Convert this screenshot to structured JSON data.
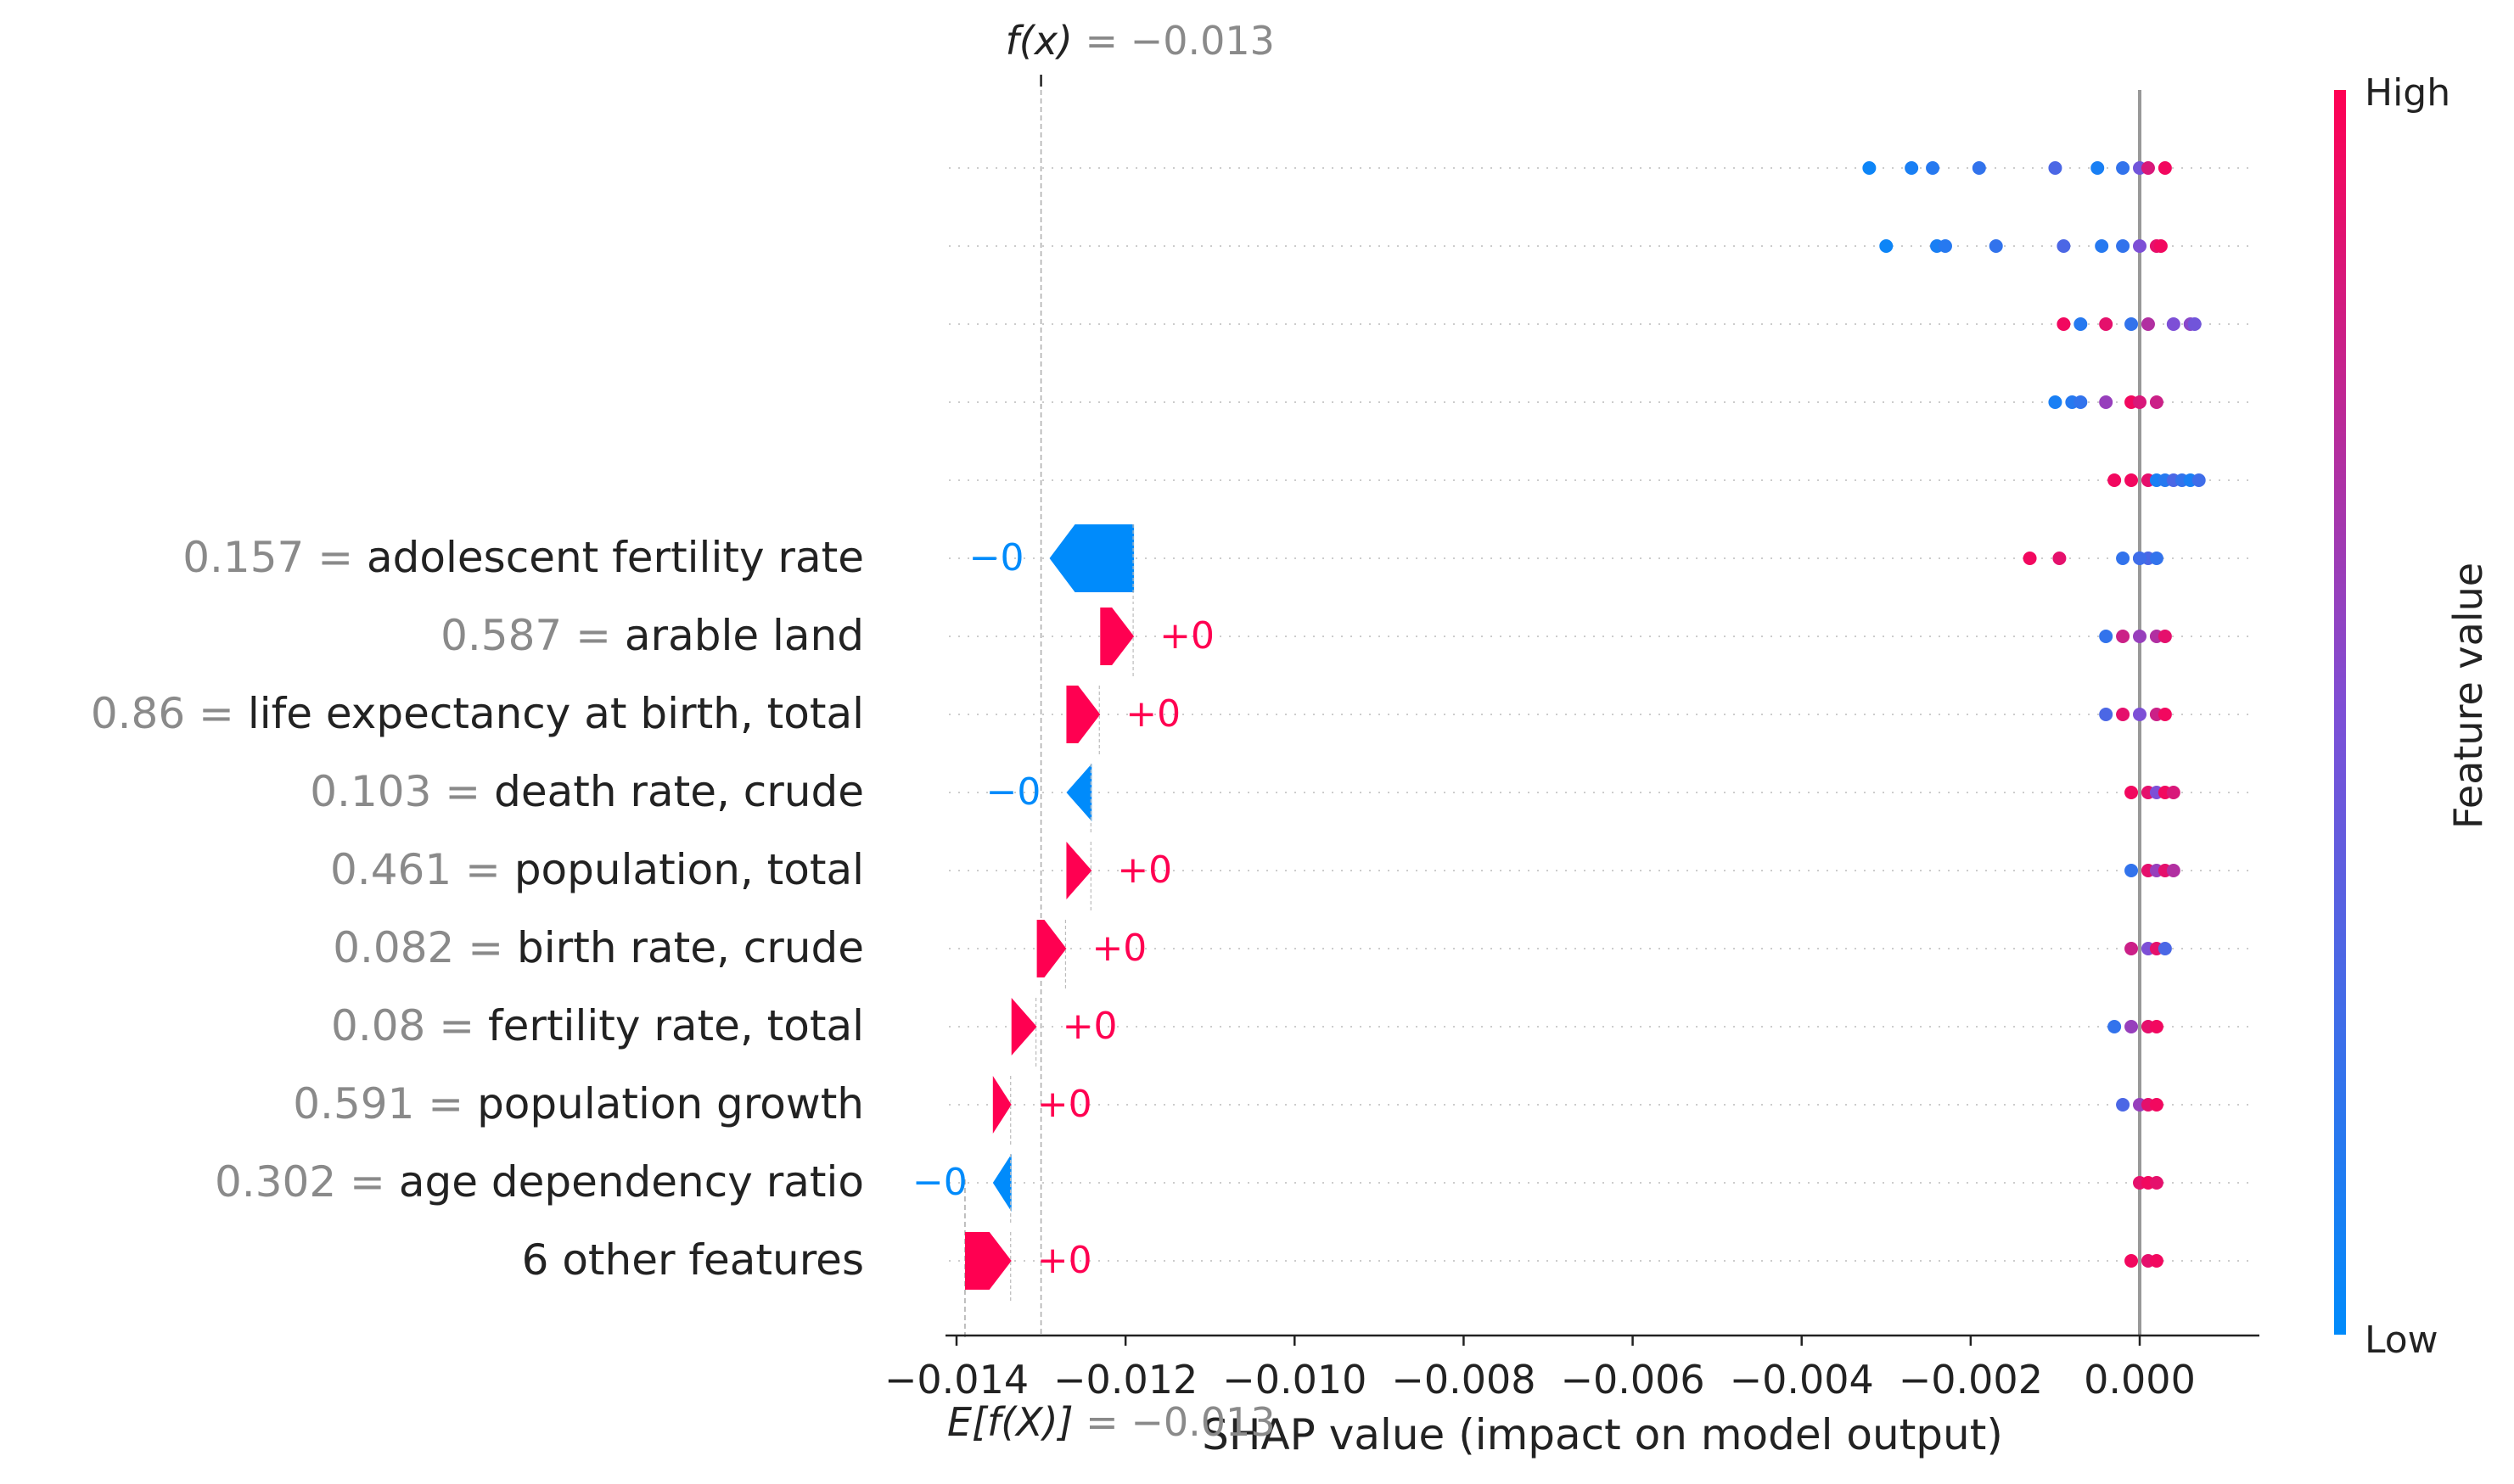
{
  "chart_data": {
    "type": "scatter",
    "subtype": "shap-waterfall-beeswarm",
    "fx": {
      "prefix": "f(x)",
      "eq": " = ",
      "value": "−0.013",
      "x": -0.013
    },
    "efx": {
      "prefix": "E[f(X)]",
      "eq": " = ",
      "value": "−0.013",
      "x": -0.0139
    },
    "xlabel": "SHAP value (impact on model output)",
    "xlim": [
      -0.0142,
      0.0014
    ],
    "xticks": [
      -0.014,
      -0.012,
      -0.01,
      -0.008,
      -0.006,
      -0.004,
      -0.002,
      0.0
    ],
    "xtick_labels": [
      "−0.014",
      "−0.012",
      "−0.010",
      "−0.008",
      "−0.006",
      "−0.004",
      "−0.002",
      "0.000"
    ],
    "colorbar": {
      "label": "Feature value",
      "high": "High",
      "low": "Low",
      "low_color": "#008bfb",
      "mid_color": "#7d4fd6",
      "high_color": "#ff0052"
    },
    "colors": {
      "positive": "#ff0051",
      "negative": "#008bfb",
      "axis": "#222222",
      "muted": "#8a8a8a",
      "text": "#222222"
    },
    "unlabeled_rows": 5,
    "features": [
      {
        "value": "0.157",
        "eq": " = ",
        "name": "adolescent fertility rate",
        "effect": "−0",
        "sign": -1,
        "start": -0.0119,
        "end": -0.0129
      },
      {
        "value": "0.587",
        "eq": " = ",
        "name": "arable land",
        "effect": "+0",
        "sign": 1,
        "start": -0.0123,
        "end": -0.0119
      },
      {
        "value": "0.86",
        "eq": " = ",
        "name": "life expectancy at birth, total",
        "effect": "+0",
        "sign": 1,
        "start": -0.0127,
        "end": -0.0123
      },
      {
        "value": "0.103",
        "eq": " = ",
        "name": "death rate, crude",
        "effect": "−0",
        "sign": -1,
        "start": -0.0124,
        "end": -0.0127
      },
      {
        "value": "0.461",
        "eq": " = ",
        "name": "population, total",
        "effect": "+0",
        "sign": 1,
        "start": -0.0127,
        "end": -0.0124
      },
      {
        "value": "0.082",
        "eq": " = ",
        "name": "birth rate, crude",
        "effect": "+0",
        "sign": 1,
        "start": -0.01305,
        "end": -0.0127
      },
      {
        "value": "0.08",
        "eq": " = ",
        "name": "fertility rate, total",
        "effect": "+0",
        "sign": 1,
        "start": -0.01335,
        "end": -0.01305
      },
      {
        "value": "0.591",
        "eq": " = ",
        "name": "population growth",
        "effect": "+0",
        "sign": 1,
        "start": -0.01357,
        "end": -0.01335
      },
      {
        "value": "0.302",
        "eq": " = ",
        "name": "age dependency ratio",
        "effect": "−0",
        "sign": -1,
        "start": -0.01335,
        "end": -0.01357
      },
      {
        "value": "",
        "eq": "",
        "name": "6 other features",
        "effect": "+0",
        "sign": 1,
        "start": -0.0139,
        "end": -0.01335
      }
    ],
    "beeswarm": [
      [
        [
          -0.0032,
          0.05
        ],
        [
          -0.0027,
          0.1
        ],
        [
          -0.00245,
          0.15
        ],
        [
          -0.0019,
          0.2
        ],
        [
          -0.001,
          0.3
        ],
        [
          -0.0005,
          0.1
        ],
        [
          -0.0002,
          0.2
        ],
        [
          0.0,
          0.45
        ],
        [
          0.0001,
          0.85
        ],
        [
          0.0003,
          0.95
        ]
      ],
      [
        [
          -0.003,
          0.05
        ],
        [
          -0.0024,
          0.1
        ],
        [
          -0.0023,
          0.15
        ],
        [
          -0.0017,
          0.2
        ],
        [
          -0.0009,
          0.3
        ],
        [
          -0.00045,
          0.15
        ],
        [
          -0.0002,
          0.2
        ],
        [
          0.0,
          0.5
        ],
        [
          0.0002,
          0.9
        ],
        [
          0.00025,
          0.95
        ]
      ],
      [
        [
          -0.0009,
          0.95
        ],
        [
          -0.0007,
          0.15
        ],
        [
          -0.0004,
          0.9
        ],
        [
          -0.0001,
          0.2
        ],
        [
          0.0001,
          0.7
        ],
        [
          0.0004,
          0.5
        ],
        [
          0.0006,
          0.55
        ],
        [
          0.00065,
          0.45
        ]
      ],
      [
        [
          -0.001,
          0.1
        ],
        [
          -0.0008,
          0.15
        ],
        [
          -0.0007,
          0.2
        ],
        [
          -0.0004,
          0.6
        ],
        [
          -0.0001,
          0.95
        ],
        [
          0.0,
          0.85
        ],
        [
          0.0002,
          0.8
        ]
      ],
      [
        [
          -0.0003,
          0.95
        ],
        [
          -0.0001,
          0.95
        ],
        [
          0.0001,
          0.9
        ],
        [
          0.0002,
          0.1
        ],
        [
          0.0003,
          0.15
        ],
        [
          0.0004,
          0.3
        ],
        [
          0.0005,
          0.2
        ],
        [
          0.0006,
          0.1
        ],
        [
          0.0007,
          0.25
        ]
      ],
      [
        [
          -0.0013,
          0.95
        ],
        [
          -0.00095,
          0.9
        ],
        [
          -0.0002,
          0.2
        ],
        [
          0.0,
          0.15
        ],
        [
          0.0001,
          0.3
        ],
        [
          0.0002,
          0.2
        ],
        [
          0.0,
          0.25
        ]
      ],
      [
        [
          -0.0004,
          0.2
        ],
        [
          -0.0002,
          0.8
        ],
        [
          0.0,
          0.6
        ],
        [
          0.0002,
          0.7
        ],
        [
          0.0003,
          0.9
        ]
      ],
      [
        [
          -0.0004,
          0.3
        ],
        [
          -0.0002,
          0.9
        ],
        [
          0.0,
          0.5
        ],
        [
          0.0002,
          0.8
        ],
        [
          0.0003,
          0.95
        ]
      ],
      [
        [
          -0.0001,
          0.95
        ],
        [
          0.0001,
          0.9
        ],
        [
          0.0002,
          0.5
        ],
        [
          0.0003,
          0.95
        ],
        [
          0.0004,
          0.85
        ]
      ],
      [
        [
          -0.0001,
          0.2
        ],
        [
          0.0001,
          0.9
        ],
        [
          0.0002,
          0.6
        ],
        [
          0.0003,
          0.9
        ],
        [
          0.0004,
          0.7
        ]
      ],
      [
        [
          -0.0001,
          0.8
        ],
        [
          0.0001,
          0.5
        ],
        [
          0.0002,
          0.9
        ],
        [
          0.0003,
          0.3
        ]
      ],
      [
        [
          -0.0003,
          0.2
        ],
        [
          -0.0001,
          0.6
        ],
        [
          0.0001,
          0.9
        ],
        [
          0.0002,
          0.95
        ]
      ],
      [
        [
          -0.0002,
          0.3
        ],
        [
          0.0,
          0.6
        ],
        [
          0.0001,
          0.9
        ],
        [
          0.0002,
          0.95
        ]
      ],
      [
        [
          0.0,
          0.9
        ],
        [
          0.0001,
          0.95
        ],
        [
          0.0002,
          0.9
        ]
      ],
      [
        [
          -0.0001,
          0.95
        ],
        [
          0.0001,
          0.9
        ],
        [
          0.0002,
          0.95
        ]
      ]
    ]
  }
}
